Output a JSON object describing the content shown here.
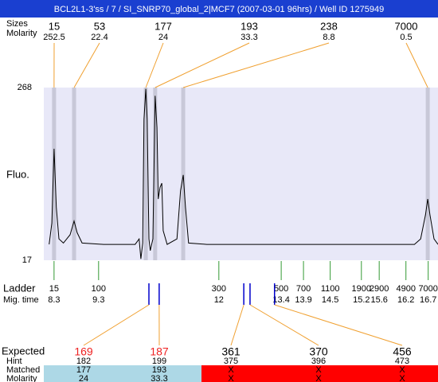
{
  "chart_data": {
    "type": "electropherogram",
    "title": "BCL2L1-3'ss / 7 / SI_SNRP70_global_2|MCF7 (2007-03-01 96hrs) / Well ID 1275949",
    "size_label": "Sizes",
    "molarity_label": "Molarity",
    "peaks": {
      "sizes": [
        15,
        53,
        177,
        193,
        238,
        7000
      ],
      "molarity": [
        252.5,
        22.4,
        24,
        33.3,
        8.8,
        0.5
      ],
      "x": [
        8.3,
        8.75,
        10.36,
        10.57,
        11.2,
        16.69
      ],
      "color": "#c8c8d8",
      "link_color": "#f0a030"
    },
    "y_label": "Fluo.",
    "ylim": [
      17,
      268
    ],
    "yticks": [
      17,
      268
    ],
    "xlim": [
      8.07,
      16.92
    ],
    "plot_background": "#e8e8f8",
    "trace": {
      "color": "#000000",
      "x": [
        8.19,
        8.25,
        8.3,
        8.35,
        8.41,
        8.51,
        8.66,
        8.75,
        8.82,
        8.93,
        9.41,
        10.12,
        10.21,
        10.25,
        10.29,
        10.32,
        10.36,
        10.39,
        10.43,
        10.46,
        10.52,
        10.57,
        10.61,
        10.64,
        10.68,
        10.72,
        10.75,
        10.84,
        11.06,
        11.14,
        11.2,
        11.25,
        11.32,
        11.73,
        16.39,
        16.53,
        16.64,
        16.69,
        16.74,
        16.83,
        16.92
      ],
      "values": [
        40,
        71,
        179,
        94,
        48,
        42,
        54,
        74,
        57,
        42,
        40,
        40,
        48,
        19,
        42,
        222,
        266,
        222,
        48,
        31,
        48,
        256,
        210,
        106,
        123,
        129,
        60,
        40,
        48,
        118,
        141,
        94,
        42,
        40,
        40,
        48,
        83,
        106,
        83,
        48,
        40
      ]
    },
    "ladder": {
      "label": "Ladder",
      "time_label": "Mig. time",
      "sizes": [
        15,
        100,
        300,
        500,
        700,
        1100,
        1900,
        2900,
        4900,
        7000
      ],
      "x": [
        8.3,
        9.3,
        12,
        13.4,
        13.9,
        14.5,
        15.2,
        15.6,
        16.2,
        16.7
      ],
      "color": "#339933"
    },
    "expected_x": [
      10.43,
      10.66,
      12.56,
      12.7,
      13.25
    ],
    "expected_color": "#0000cc",
    "table": {
      "labels": [
        "Expected",
        "Hint",
        "Matched",
        "Molarity"
      ],
      "expected": [
        169,
        187,
        361,
        370,
        456
      ],
      "expected_colors": [
        "#ee2222",
        "#ee2222",
        "#000000",
        "#000000",
        "#000000"
      ],
      "hint": [
        182,
        199,
        375,
        396,
        473
      ],
      "matched": [
        177,
        193,
        "X",
        "X",
        "X"
      ],
      "molarity": [
        24,
        33.3,
        "X",
        "X",
        "X"
      ],
      "cell_colors": [
        "#add8e6",
        "#add8e6",
        "#ff0000",
        "#ff0000",
        "#ff0000"
      ]
    }
  }
}
